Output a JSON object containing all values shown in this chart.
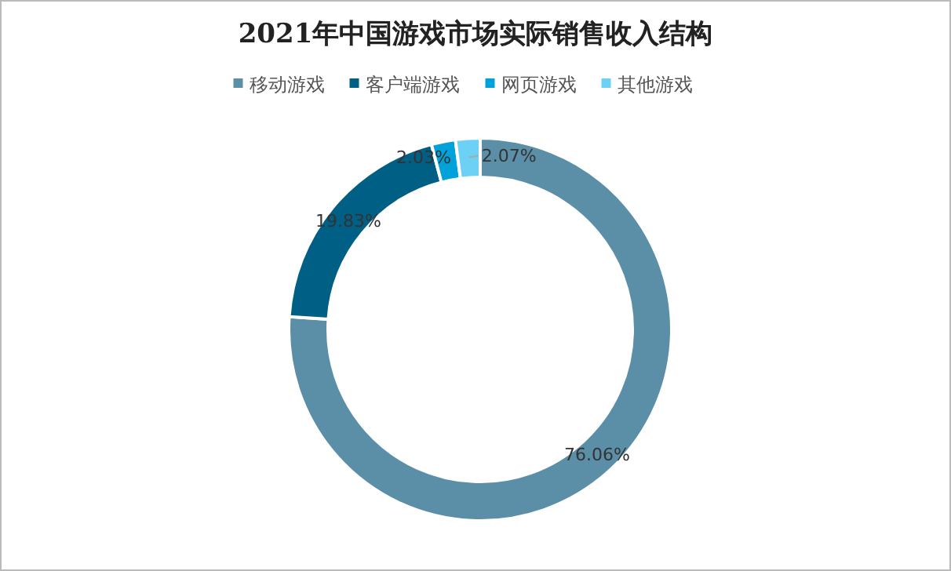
{
  "chart_data": {
    "type": "donut",
    "title": "2021年中国游戏市场实际销售收入结构",
    "categories": [
      "移动游戏",
      "客户端游戏",
      "网页游戏",
      "其他游戏"
    ],
    "values": [
      76.06,
      19.83,
      2.03,
      2.07
    ],
    "colors": [
      "#5b8fa8",
      "#005f85",
      "#00a2d9",
      "#6dd0f5"
    ],
    "value_labels": [
      "76.06%",
      "19.83%",
      "2.03%",
      "2.07%"
    ],
    "legend": "top"
  }
}
